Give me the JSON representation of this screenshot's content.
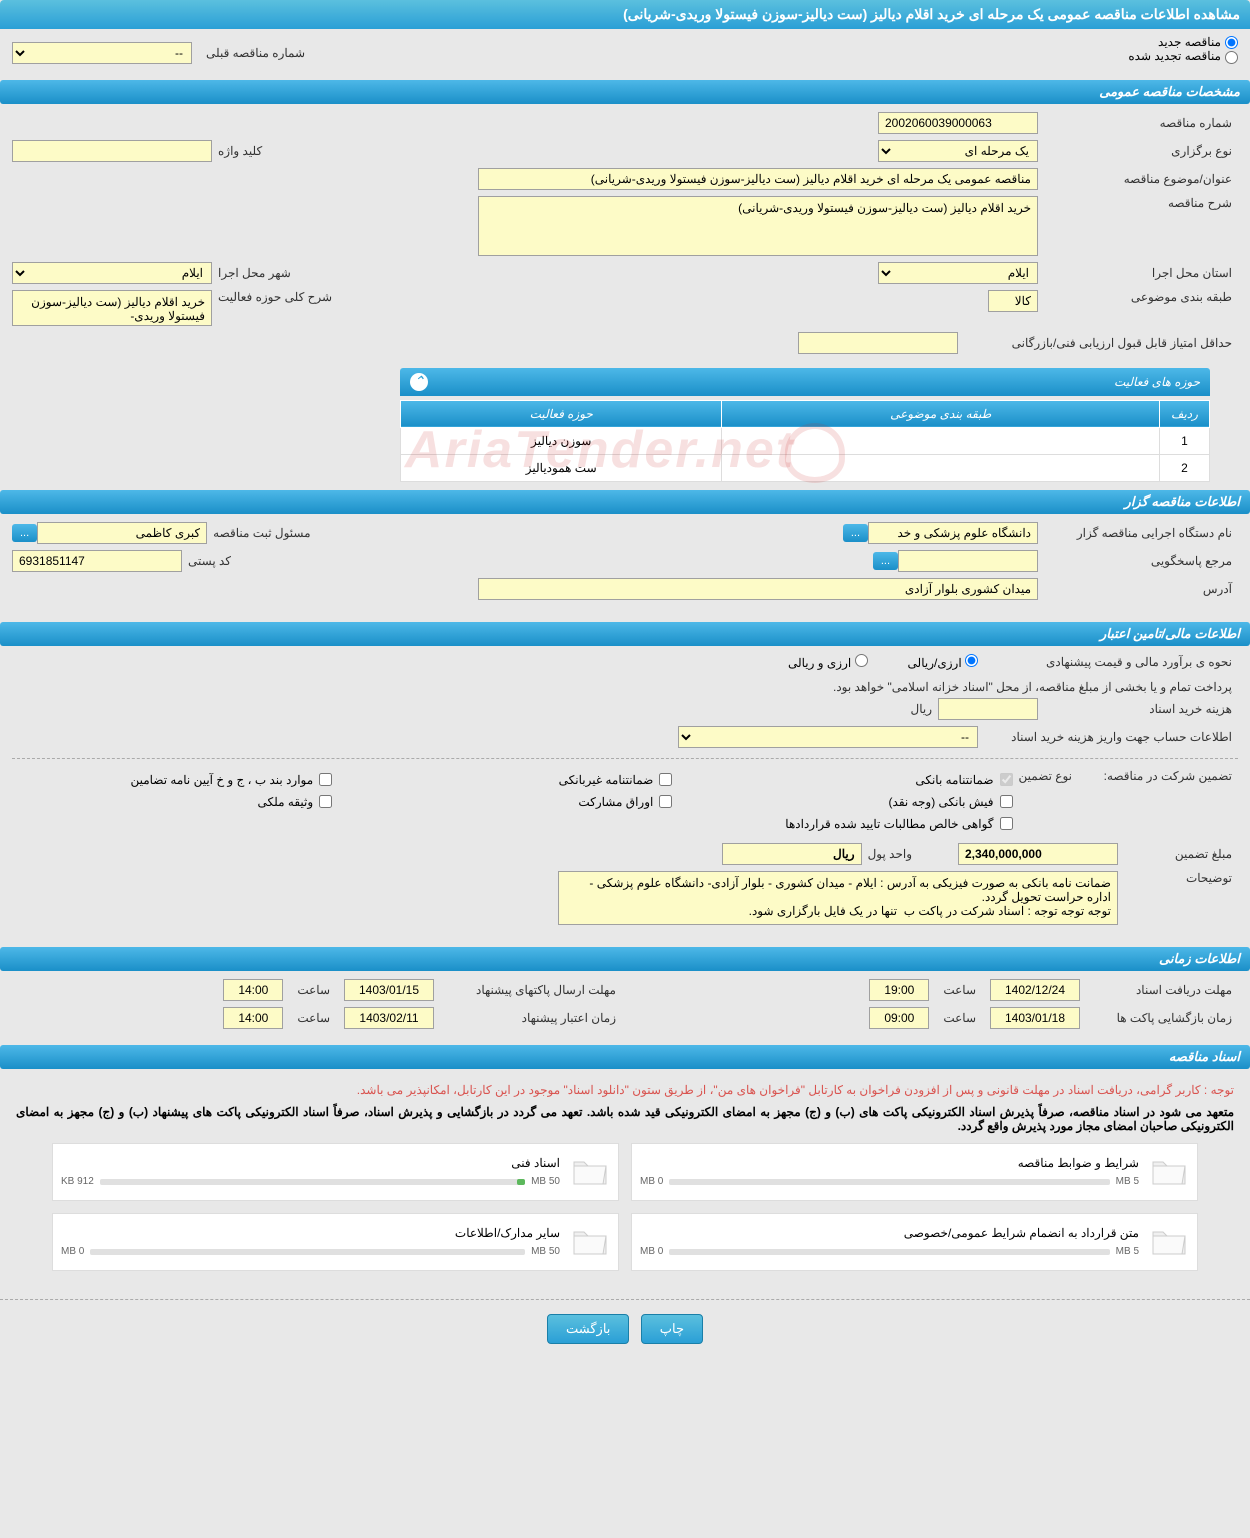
{
  "page_title": "مشاهده اطلاعات مناقصه عمومی یک مرحله ای خرید اقلام دیالیز (ست دیالیز-سوزن فیستولا وریدی-شریانی)",
  "radio1": {
    "new_label": "مناقصه جدید",
    "renewed_label": "مناقصه تجدید شده"
  },
  "prev_number_label": "شماره مناقصه قبلی",
  "prev_number_value": "--",
  "sections": {
    "general": "مشخصات مناقصه عمومی",
    "activity": "حوزه های فعالیت",
    "organizer": "اطلاعات مناقصه گزار",
    "financial": "اطلاعات مالی/تامین اعتبار",
    "time": "اطلاعات زمانی",
    "docs": "اسناد مناقصه"
  },
  "general": {
    "number_label": "شماره مناقصه",
    "number": "2002060039000063",
    "type_label": "نوع برگزاری",
    "type": "یک مرحله ای",
    "keyword_label": "کلید واژه",
    "keyword": "",
    "title_label": "عنوان/موضوع مناقصه",
    "title": "مناقصه عمومی یک مرحله ای خرید اقلام دیالیز (ست دیالیز-سوزن فیستولا وریدی-شریانی)",
    "desc_label": "شرح مناقصه",
    "desc": "خرید اقلام دیالیز (ست دیالیز-سوزن فیستولا وریدی-شریانی)",
    "province_label": "استان محل اجرا",
    "province": "ایلام",
    "city_label": "شهر محل اجرا",
    "city": "ایلام",
    "category_label": "طبقه بندی موضوعی",
    "category": "کالا",
    "scope_label": "شرح کلی حوزه فعالیت",
    "scope": "خرید اقلام دیالیز (ست دیالیز-سوزن فیستولا وریدی-",
    "min_score_label": "حداقل امتیاز قابل قبول ارزیابی فنی/بازرگانی",
    "min_score": ""
  },
  "activity": {
    "col_row": "ردیف",
    "col_cat": "طبقه بندی موضوعی",
    "col_scope": "حوزه فعالیت",
    "rows": [
      {
        "n": "1",
        "cat": "",
        "scope": "سوزن دیالیز"
      },
      {
        "n": "2",
        "cat": "",
        "scope": "ست همودیالیز"
      }
    ]
  },
  "organizer": {
    "name_label": "نام دستگاه اجرایی مناقصه گزار",
    "name": "دانشگاه علوم پزشکی و خد",
    "officer_label": "مسئول ثبت مناقصه",
    "officer": "کبری کاظمی",
    "ref_label": "مرجع پاسخگویی",
    "ref": "",
    "post_label": "کد پستی",
    "post": "6931851147",
    "addr_label": "آدرس",
    "addr": "میدان کشوری بلوار آزادی"
  },
  "financial": {
    "method_label": "نحوه ی برآورد مالی و قیمت پیشنهادی",
    "rial_opt": "ارزی/ریالی",
    "fx_opt": "ارزی و ریالی",
    "note1": "پرداخت تمام و یا بخشی از مبلغ مناقصه، از محل \"اسناد خزانه اسلامی\" خواهد بود.",
    "cost_label": "هزینه خرید اسناد",
    "cost_unit": "ریال",
    "cost": "",
    "account_label": "اطلاعات حساب جهت واریز هزینه خرید اسناد",
    "account": "--",
    "guarantee_label": "تضمین شرکت در مناقصه:",
    "guarantee_type_label": "نوع تضمین",
    "g1": "ضمانتنامه بانکی",
    "g2": "ضمانتنامه غیربانکی",
    "g3": "موارد بند ب ، ج و خ آیین نامه تضامین",
    "g4": "فیش بانکی (وجه نقد)",
    "g5": "اوراق مشارکت",
    "g6": "وثیقه ملکی",
    "g7": "گواهی خالص مطالبات تایید شده قراردادها",
    "amount_label": "مبلغ تضمین",
    "amount": "2,340,000,000",
    "amount_unit_label": "واحد پول",
    "amount_unit": "ریال",
    "notes_label": "توضیحات",
    "notes": "ضمانت نامه بانکی به صورت فیزیکی به آدرس : ایلام - میدان کشوری - بلوار آزادی- دانشگاه علوم پزشکی - اداره حراست تحویل گردد.\nتوجه توجه توجه : اسناد شرکت در پاکت ب  تنها در یک فایل بارگزاری شود."
  },
  "time": {
    "receive_label": "مهلت دریافت اسناد",
    "receive_date": "1402/12/24",
    "receive_time": "19:00",
    "send_label": "مهلت ارسال پاکتهای پیشنهاد",
    "send_date": "1403/01/15",
    "send_time": "14:00",
    "open_label": "زمان بازگشایی پاکت ها",
    "open_date": "1403/01/18",
    "open_time": "09:00",
    "valid_label": "زمان اعتبار پیشنهاد",
    "valid_date": "1403/02/11",
    "valid_time": "14:00",
    "hour_label": "ساعت"
  },
  "docs": {
    "red_notice": "توجه : کاربر گرامی، دریافت اسناد در مهلت قانونی و پس از افزودن فراخوان به کارتابل \"فراخوان های من\"، از طریق ستون \"دانلود اسناد\" موجود در این کارتابل، امکانپذیر می باشد.",
    "black_notice": "متعهد می شود در اسناد مناقصه، صرفاً پذیرش اسناد الکترونیکی پاکت های (ب) و (ج) مجهز به امضای الکترونیکی قید شده باشد. تعهد می گردد در بازگشایی و پذیرش اسناد، صرفاً اسناد الکترونیکی پاکت های پیشنهاد (ب) و (ج) مجهز به امضای الکترونیکی صاحبان امضای مجاز مورد پذیرش واقع گردد.",
    "files": [
      {
        "title": "شرایط و ضوابط مناقصه",
        "used": "0 MB",
        "max": "5 MB",
        "pct": 0
      },
      {
        "title": "اسناد فنی",
        "used": "912 KB",
        "max": "50 MB",
        "pct": 2
      },
      {
        "title": "متن قرارداد به انضمام شرایط عمومی/خصوصی",
        "used": "0 MB",
        "max": "5 MB",
        "pct": 0
      },
      {
        "title": "سایر مدارک/اطلاعات",
        "used": "0 MB",
        "max": "50 MB",
        "pct": 0
      }
    ]
  },
  "footer": {
    "print": "چاپ",
    "back": "بازگشت"
  },
  "watermark": "AriaTender.net"
}
